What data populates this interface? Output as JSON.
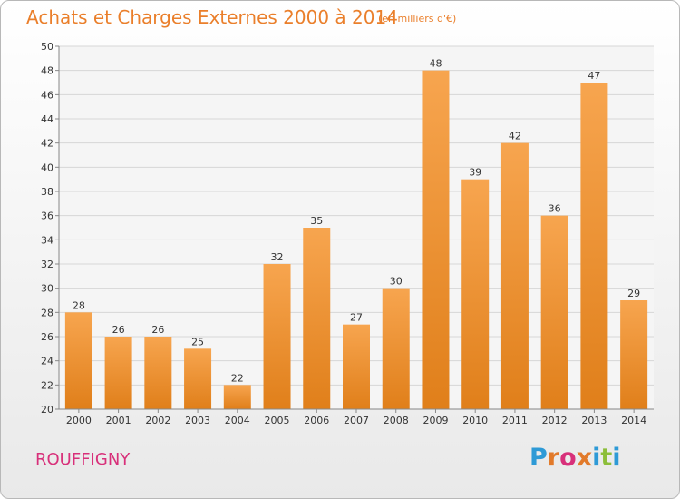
{
  "header": {
    "title": "Achats et Charges Externes 2000 à 2014",
    "subtitle": "(en milliers d'€)"
  },
  "footer": {
    "commune": "ROUFFIGNY",
    "logo_text": "Proxiti"
  },
  "colors": {
    "bar_light": "#f7a54f",
    "bar_dark": "#e07f1a",
    "title": "#ea7f2b",
    "commune": "#d8307a",
    "logo": [
      "#2e9ad6",
      "#e27a2a",
      "#d8307a",
      "#e27a2a",
      "#2e9ad6",
      "#8cbe3a",
      "#2e9ad6"
    ]
  },
  "chart_data": {
    "type": "bar",
    "categories": [
      "2000",
      "2001",
      "2002",
      "2003",
      "2004",
      "2005",
      "2006",
      "2007",
      "2008",
      "2009",
      "2010",
      "2011",
      "2012",
      "2013",
      "2014"
    ],
    "values": [
      28,
      26,
      26,
      25,
      22,
      32,
      35,
      27,
      30,
      48,
      39,
      42,
      36,
      47,
      29
    ],
    "ylim": [
      20,
      50
    ],
    "yticks": [
      20,
      22,
      24,
      26,
      28,
      30,
      32,
      34,
      36,
      38,
      40,
      42,
      44,
      46,
      48,
      50
    ],
    "grid": true,
    "data_labels": true
  }
}
